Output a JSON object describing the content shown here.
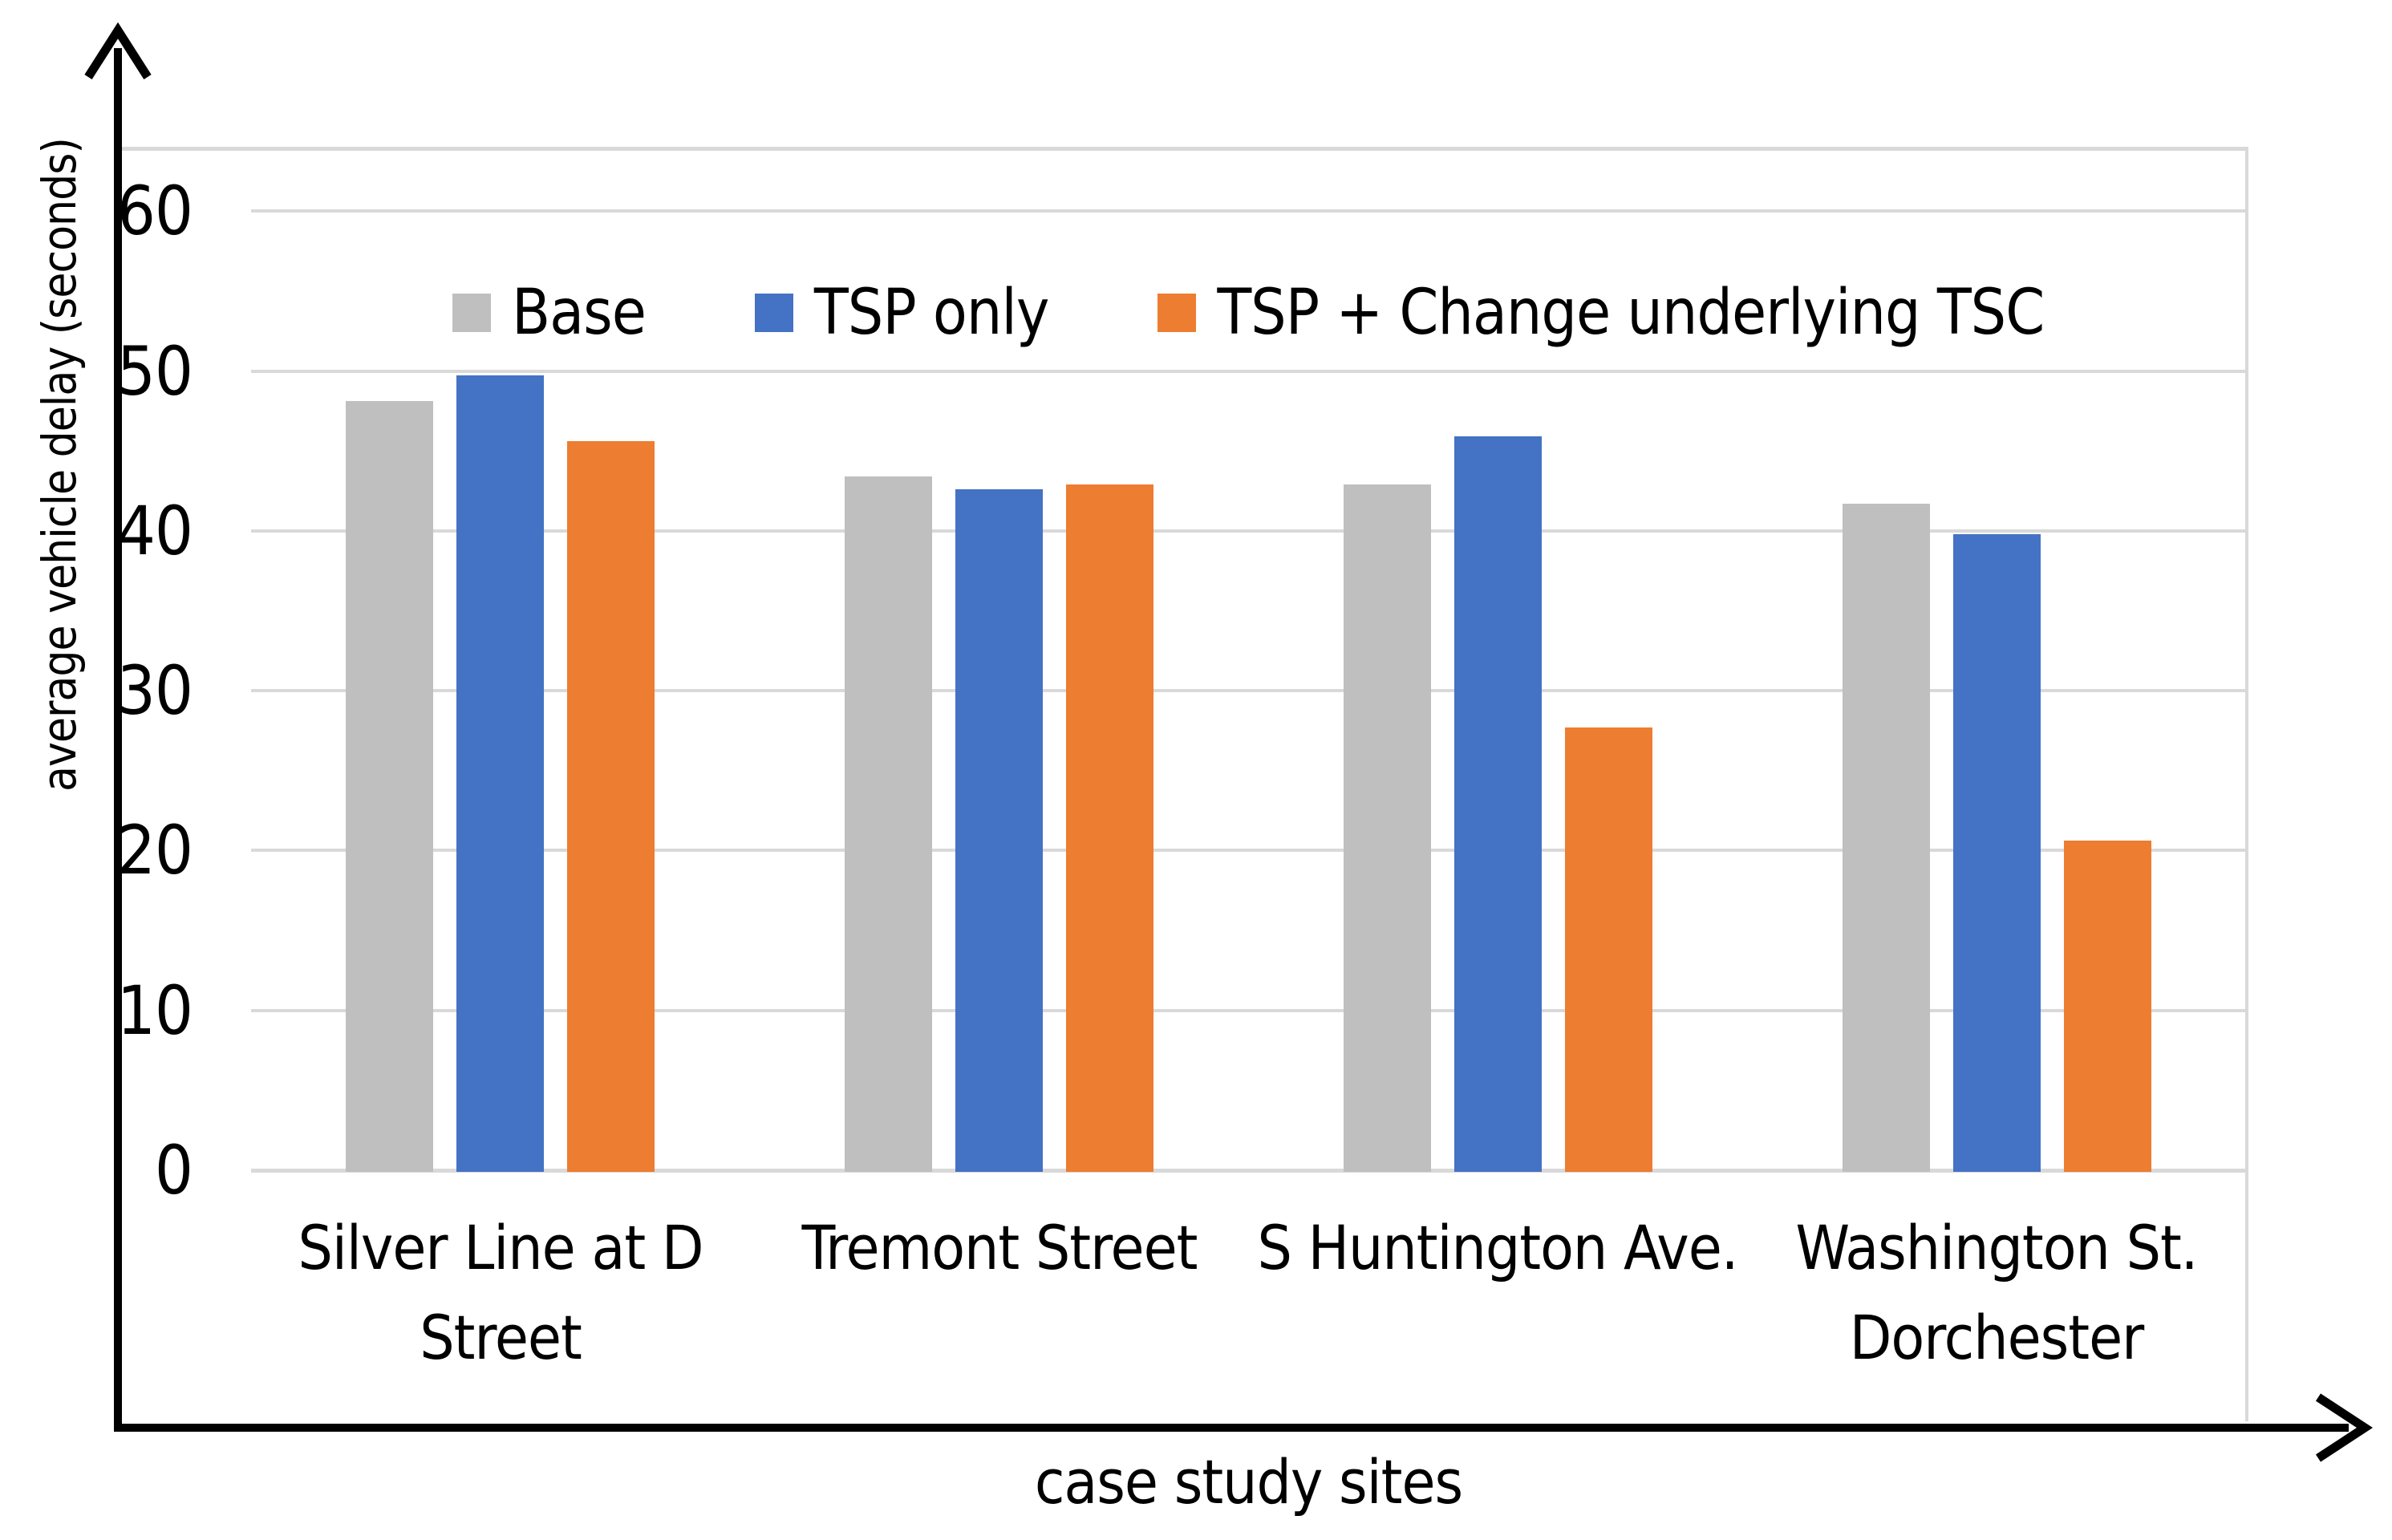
{
  "chart_data": {
    "type": "bar",
    "title": "",
    "xlabel": "case study sites",
    "ylabel": "average vehicle delay (seconds)",
    "categories": [
      "Silver Line at D Street",
      "Tremont Street",
      "S Huntington Ave.",
      "Washington St. Dorchester"
    ],
    "category_lines": [
      [
        "Silver Line at D",
        "Street"
      ],
      [
        "Tremont Street"
      ],
      [
        "S Huntington Ave."
      ],
      [
        "Washington St.",
        "Dorchester"
      ]
    ],
    "series": [
      {
        "name": "Base",
        "color": "#BFBFBF",
        "values": [
          48.2,
          43.5,
          43.0,
          41.8
        ]
      },
      {
        "name": "TSP only",
        "color": "#4472C4",
        "values": [
          49.8,
          42.7,
          46.0,
          39.9
        ]
      },
      {
        "name": "TSP + Change underlying TSC",
        "color": "#ED7D31",
        "values": [
          45.7,
          43.0,
          27.8,
          20.7
        ]
      }
    ],
    "y_axis": {
      "ticks": [
        0,
        10,
        20,
        30,
        40,
        50,
        60
      ],
      "min": 0,
      "max_visible": 64,
      "gridlines": true
    },
    "legend": {
      "position": "top-inside-plot"
    },
    "colors": {
      "gridline": "#D9D9D9",
      "axis": "#000000",
      "text": "#000000",
      "background": "#FFFFFF"
    }
  }
}
